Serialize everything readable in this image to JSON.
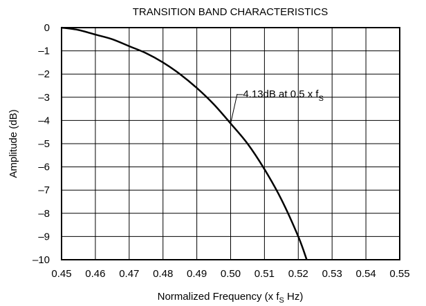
{
  "chart_data": {
    "type": "line",
    "title": "TRANSITION BAND CHARACTERISTICS",
    "xlabel": {
      "pre": "Normalized Frequency (x f",
      "sub": "S",
      "post": " Hz)"
    },
    "ylabel": "Amplitude (dB)",
    "xlim": [
      0.45,
      0.55
    ],
    "ylim": [
      -10,
      0
    ],
    "grid": true,
    "x_ticks": [
      "0.45",
      "0.46",
      "0.47",
      "0.48",
      "0.49",
      "0.50",
      "0.51",
      "0.52",
      "0.53",
      "0.54",
      "0.55"
    ],
    "y_ticks": [
      "0",
      "–1",
      "–2",
      "–3",
      "–4",
      "–5",
      "–6",
      "–7",
      "–8",
      "–9",
      "–10"
    ],
    "series": [
      {
        "x": [
          0.45,
          0.455,
          0.46,
          0.465,
          0.47,
          0.475,
          0.48,
          0.485,
          0.49,
          0.495,
          0.5,
          0.505,
          0.51,
          0.515,
          0.52,
          0.5225
        ],
        "y": [
          0.0,
          -0.1,
          -0.3,
          -0.5,
          -0.8,
          -1.1,
          -1.5,
          -2.0,
          -2.6,
          -3.3,
          -4.13,
          -5.0,
          -6.1,
          -7.4,
          -9.0,
          -10.0
        ]
      }
    ],
    "annotation": {
      "pre": "–4.13dB at 0.5 x f",
      "sub": "S",
      "x": 0.5,
      "y": -4.13
    }
  }
}
